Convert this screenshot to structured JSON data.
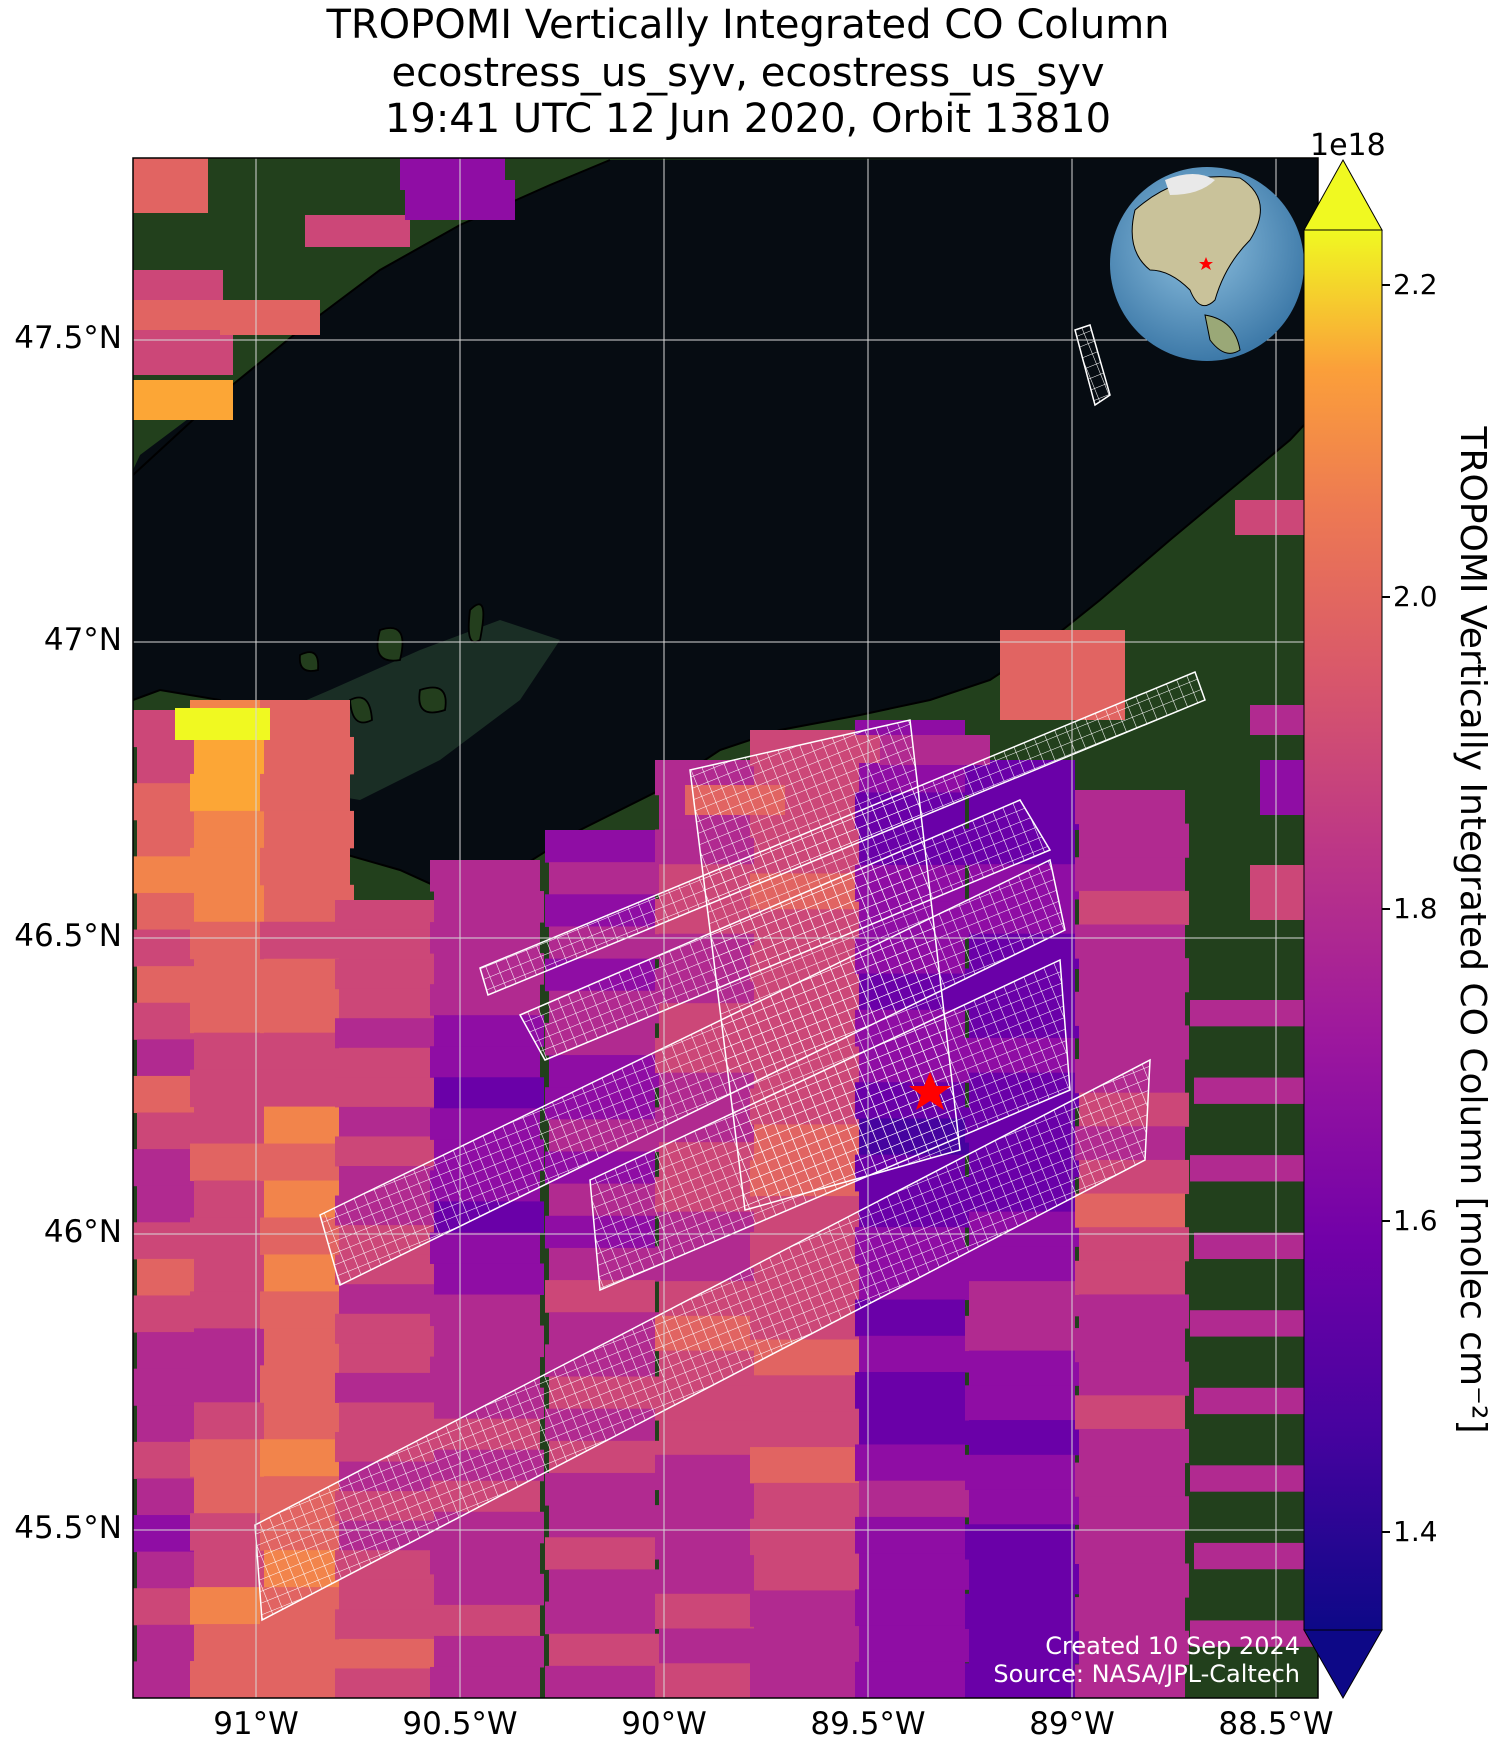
{
  "title": {
    "line1": "TROPOMI Vertically Integrated CO Column",
    "line2": "ecostress_us_syv, ecostress_us_syv",
    "line3": "19:41 UTC 12 Jun 2020, Orbit 13810"
  },
  "axes": {
    "lat_labels": [
      "47.5°N",
      "47°N",
      "46.5°N",
      "46°N",
      "45.5°N"
    ],
    "lon_labels": [
      "91°W",
      "90.5°W",
      "90°W",
      "89.5°W",
      "89°W",
      "88.5°W"
    ]
  },
  "colorbar": {
    "label": "TROPOMI Vertically Integrated CO Column [molec cm⁻²]",
    "exponent": "1e18",
    "ticks": [
      "2.2",
      "2.0",
      "1.8",
      "1.6",
      "1.4"
    ],
    "range": [
      1.3,
      2.25
    ],
    "colormap": "plasma"
  },
  "credits": {
    "created": "Created 10 Sep 2024",
    "source": "Source: NASA/JPL-Caltech"
  },
  "map": {
    "extent_lon": [
      -91.3,
      -88.4
    ],
    "extent_lat": [
      45.2,
      47.8
    ],
    "target_marker": "red-star",
    "background": "satellite-imagery",
    "lake_color": "#060c12",
    "land_color": "#1f3a1a"
  }
}
